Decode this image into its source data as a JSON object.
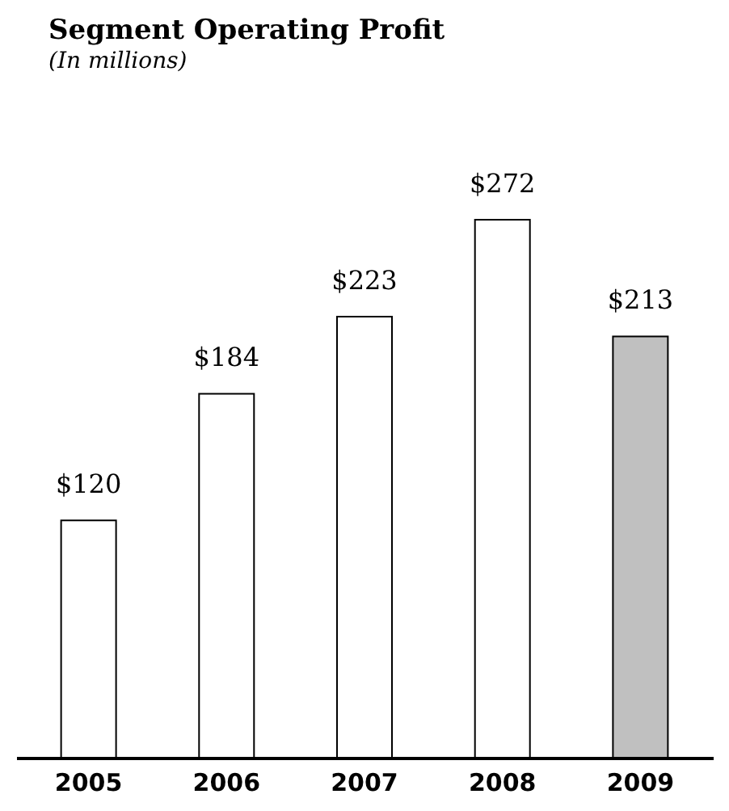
{
  "chart_data": {
    "type": "bar",
    "title": "Segment Operating Profit",
    "subtitle": "(In millions)",
    "categories": [
      "2005",
      "2006",
      "2007",
      "2008",
      "2009"
    ],
    "values": [
      120,
      184,
      223,
      272,
      213
    ],
    "colors": [
      "#ffffff",
      "#ffffff",
      "#ffffff",
      "#ffffff",
      "#c0c0c0"
    ],
    "value_labels": [
      "$120",
      "$184",
      "$223",
      "$272",
      "$213"
    ],
    "grid": false
  }
}
